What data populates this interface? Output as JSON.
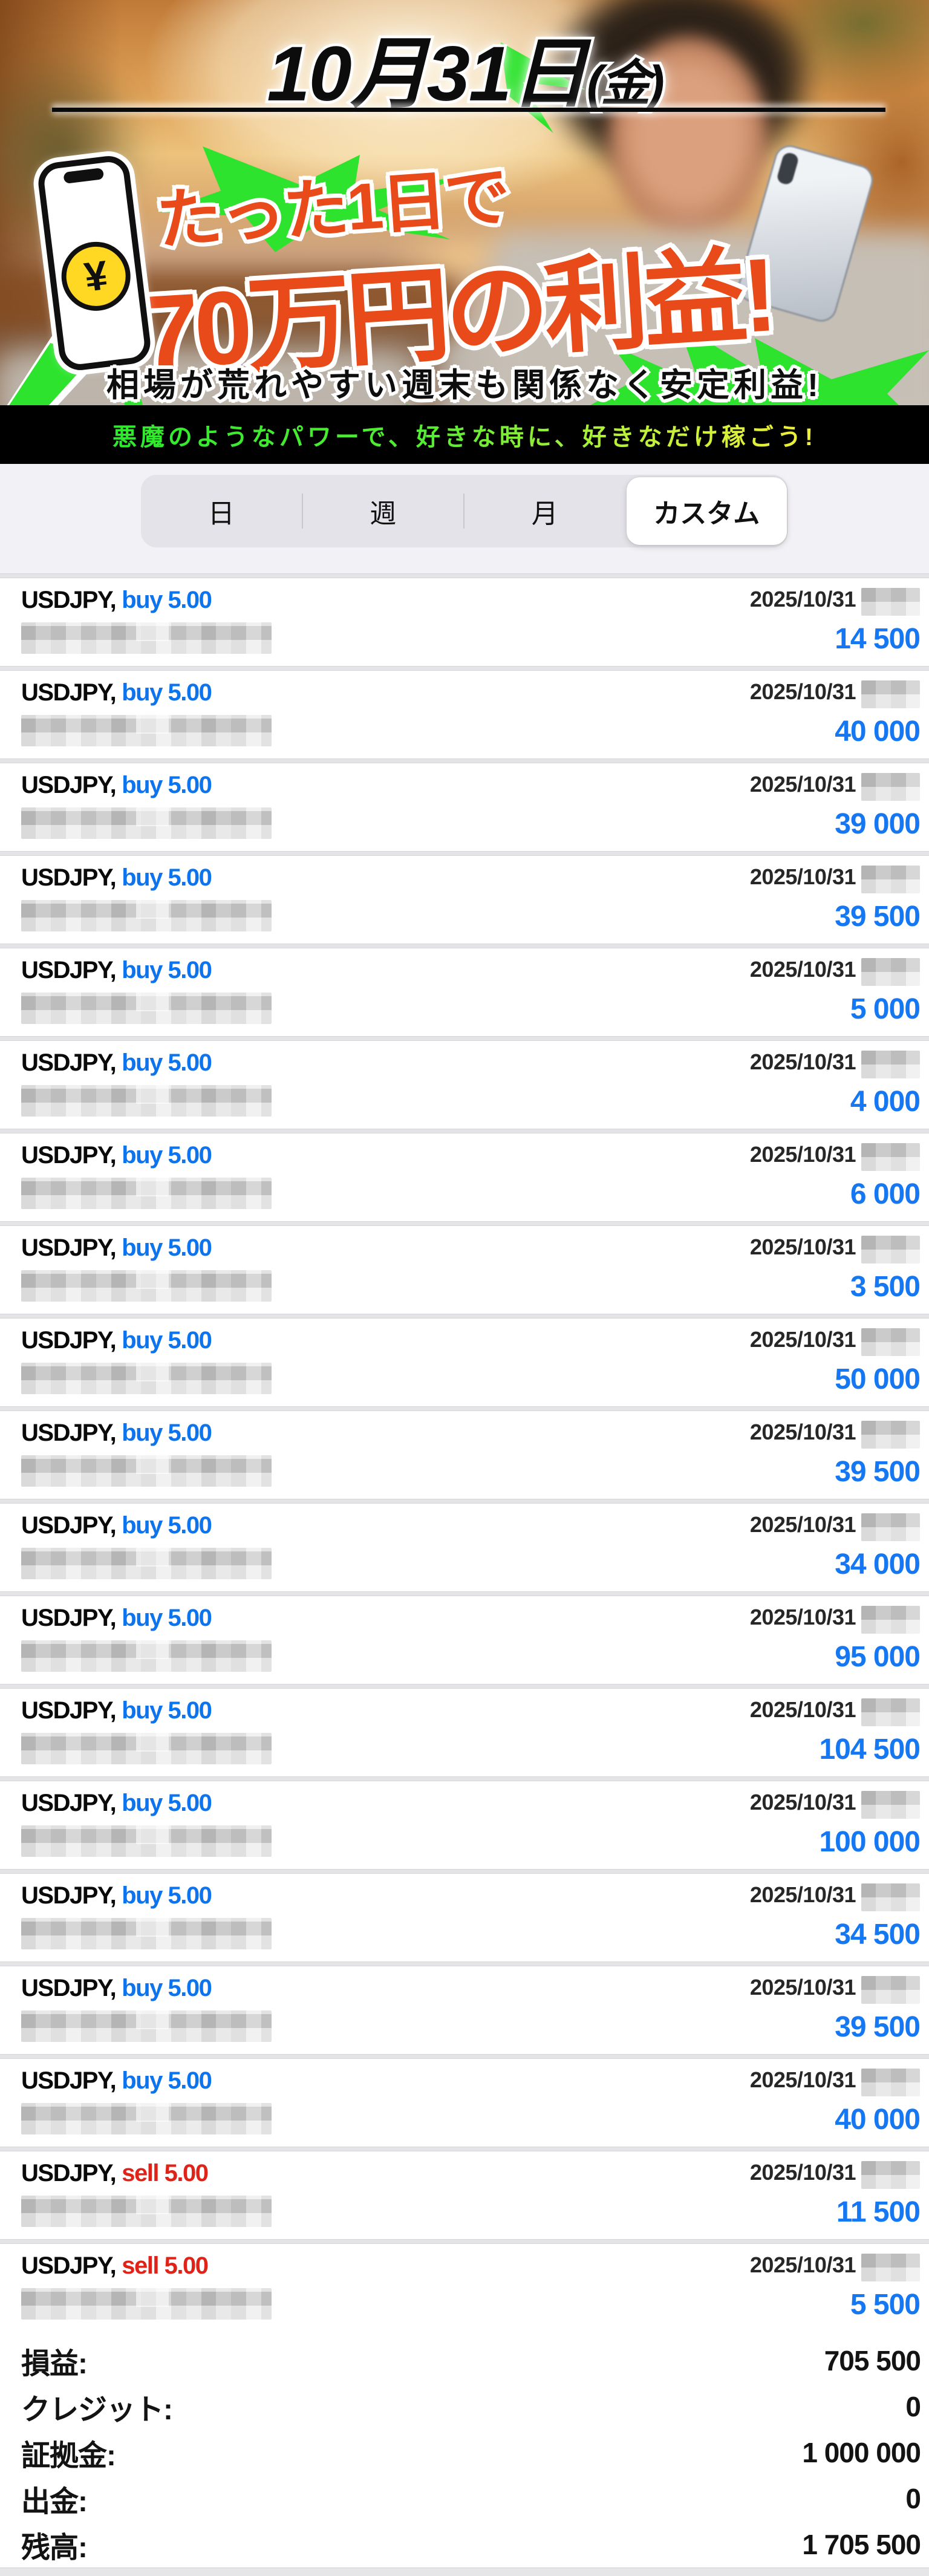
{
  "hero": {
    "date_title": "10月31日",
    "date_suffix": "(金)",
    "headline_line1": "たった1日で",
    "headline_line2": "70万円の利益!",
    "subtitle": "相場が荒れやすい週末も関係なく安定利益!",
    "phone_icon_symbol": "¥"
  },
  "promo_bar": {
    "text": "悪魔のようなパワーで、好きな時に、好きなだけ稼ごう!"
  },
  "period_tabs": {
    "items": [
      {
        "label": "日",
        "selected": false
      },
      {
        "label": "週",
        "selected": false
      },
      {
        "label": "月",
        "selected": false
      },
      {
        "label": "カスタム",
        "selected": true
      }
    ]
  },
  "trades": {
    "symbol": "USDJPY,",
    "rows": [
      {
        "side": "buy",
        "label": "buy 5.00",
        "date": "2025/10/31",
        "profit": "14 500"
      },
      {
        "side": "buy",
        "label": "buy 5.00",
        "date": "2025/10/31",
        "profit": "40 000"
      },
      {
        "side": "buy",
        "label": "buy 5.00",
        "date": "2025/10/31",
        "profit": "39 000"
      },
      {
        "side": "buy",
        "label": "buy 5.00",
        "date": "2025/10/31",
        "profit": "39 500"
      },
      {
        "side": "buy",
        "label": "buy 5.00",
        "date": "2025/10/31",
        "profit": "5 000"
      },
      {
        "side": "buy",
        "label": "buy 5.00",
        "date": "2025/10/31",
        "profit": "4 000"
      },
      {
        "side": "buy",
        "label": "buy 5.00",
        "date": "2025/10/31",
        "profit": "6 000"
      },
      {
        "side": "buy",
        "label": "buy 5.00",
        "date": "2025/10/31",
        "profit": "3 500"
      },
      {
        "side": "buy",
        "label": "buy 5.00",
        "date": "2025/10/31",
        "profit": "50 000"
      },
      {
        "side": "buy",
        "label": "buy 5.00",
        "date": "2025/10/31",
        "profit": "39 500"
      },
      {
        "side": "buy",
        "label": "buy 5.00",
        "date": "2025/10/31",
        "profit": "34 000"
      },
      {
        "side": "buy",
        "label": "buy 5.00",
        "date": "2025/10/31",
        "profit": "95 000"
      },
      {
        "side": "buy",
        "label": "buy 5.00",
        "date": "2025/10/31",
        "profit": "104 500"
      },
      {
        "side": "buy",
        "label": "buy 5.00",
        "date": "2025/10/31",
        "profit": "100 000"
      },
      {
        "side": "buy",
        "label": "buy 5.00",
        "date": "2025/10/31",
        "profit": "34 500"
      },
      {
        "side": "buy",
        "label": "buy 5.00",
        "date": "2025/10/31",
        "profit": "39 500"
      },
      {
        "side": "buy",
        "label": "buy 5.00",
        "date": "2025/10/31",
        "profit": "40 000"
      },
      {
        "side": "sell",
        "label": "sell 5.00",
        "date": "2025/10/31",
        "profit": "11 500"
      },
      {
        "side": "sell",
        "label": "sell 5.00",
        "date": "2025/10/31",
        "profit": "5 500"
      }
    ]
  },
  "summary": {
    "rows": [
      {
        "label": "損益:",
        "value": "705 500"
      },
      {
        "label": "クレジット:",
        "value": "0"
      },
      {
        "label": "証拠金:",
        "value": "1 000 000"
      },
      {
        "label": "出金:",
        "value": "0"
      },
      {
        "label": "残高:",
        "value": "1 705 500"
      }
    ]
  },
  "colors": {
    "buy_blue": "#0d74ee",
    "profit_blue": "#1577f2",
    "sell_red": "#e02318",
    "promo_orange": "#e84a1a",
    "lightning_green": "#2ee32e",
    "coin_yellow": "#ffd824",
    "promo_text_gradient_start": "#2de92d",
    "promo_text_gradient_end": "#f2ef38"
  }
}
